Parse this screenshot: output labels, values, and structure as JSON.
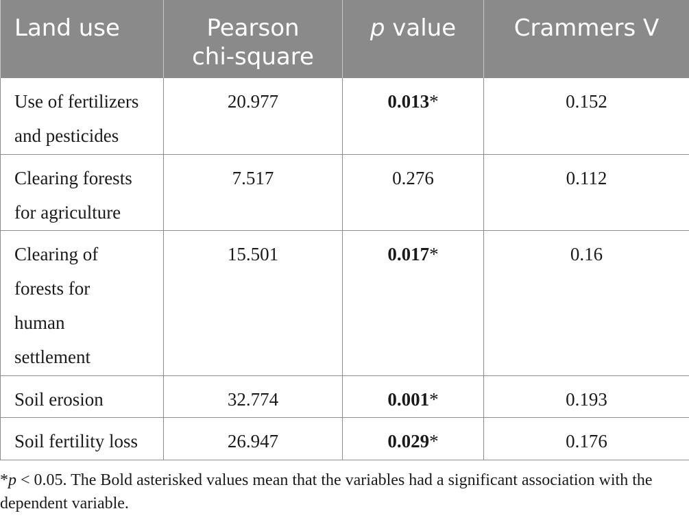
{
  "table": {
    "headers": {
      "land_use": "Land use",
      "pearson_line1": "Pearson",
      "pearson_line2": "chi-square",
      "p_italic": "p",
      "p_rest": " value",
      "crammers": "Crammers V"
    },
    "rows": [
      {
        "label": "Use of fertilizers and pesticides",
        "chi": "20.977",
        "p": "0.013",
        "p_mark": "*",
        "p_bold": true,
        "v": "0.152"
      },
      {
        "label": "Clearing forests for agriculture",
        "chi": "7.517",
        "p": "0.276",
        "p_mark": "",
        "p_bold": false,
        "v": "0.112"
      },
      {
        "label": "Clearing of forests for human settlement",
        "chi": "15.501",
        "p": "0.017",
        "p_mark": "*",
        "p_bold": true,
        "v": "0.16"
      },
      {
        "label": "Soil erosion",
        "chi": "32.774",
        "p": "0.001",
        "p_mark": "*",
        "p_bold": true,
        "v": "0.193"
      },
      {
        "label": "Soil fertility loss",
        "chi": "26.947",
        "p": "0.029",
        "p_mark": "*",
        "p_bold": true,
        "v": "0.176"
      }
    ]
  },
  "footnote": {
    "star": "*",
    "p_italic": "p",
    "text": " < 0.05. The Bold asterisked values mean that the variables had a significant association with the dependent variable."
  }
}
